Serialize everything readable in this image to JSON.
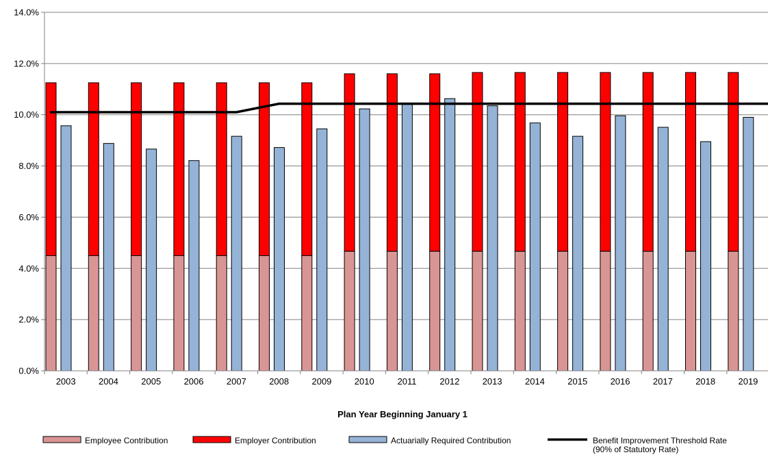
{
  "chart_data": {
    "type": "bar",
    "title": "",
    "xlabel": "Plan Year Beginning January 1",
    "ylabel": "",
    "ylim": [
      0,
      14
    ],
    "y_tick_values": [
      0,
      2,
      4,
      6,
      8,
      10,
      12,
      14
    ],
    "y_tick_labels": [
      "0.0%",
      "2.0%",
      "4.0%",
      "6.0%",
      "8.0%",
      "10.0%",
      "12.0%",
      "14.0%"
    ],
    "grid": true,
    "legend_position": "bottom",
    "categories": [
      "2003",
      "2004",
      "2005",
      "2006",
      "2007",
      "2008",
      "2009",
      "2010",
      "2011",
      "2012",
      "2013",
      "2014",
      "2015",
      "2016",
      "2017",
      "2018",
      "2019"
    ],
    "series": [
      {
        "name": "Employee Contribution",
        "kind": "stacked-bar",
        "color": "#d99594",
        "values": [
          4.5,
          4.5,
          4.5,
          4.5,
          4.5,
          4.5,
          4.5,
          4.67,
          4.67,
          4.67,
          4.67,
          4.67,
          4.67,
          4.67,
          4.67,
          4.67,
          4.67
        ]
      },
      {
        "name": "Employer Contribution",
        "kind": "stacked-bar",
        "color": "#ff0000",
        "values": [
          6.75,
          6.75,
          6.75,
          6.75,
          6.75,
          6.75,
          6.75,
          6.93,
          6.93,
          6.93,
          6.98,
          6.98,
          6.98,
          6.98,
          6.98,
          6.98,
          6.98
        ]
      },
      {
        "name": "Actuarially Required Contribution",
        "kind": "bar",
        "color": "#95b3d7",
        "values": [
          9.57,
          8.88,
          8.66,
          8.21,
          9.16,
          8.72,
          9.45,
          10.23,
          10.42,
          10.63,
          10.35,
          9.68,
          9.16,
          9.96,
          9.51,
          8.95,
          9.9
        ]
      },
      {
        "name": "Benefit Improvement Threshold Rate",
        "name_line2": "(90% of Statutory Rate)",
        "kind": "line",
        "color": "#000000",
        "values": [
          10.1,
          10.1,
          10.1,
          10.1,
          10.1,
          10.43,
          10.43,
          10.43,
          10.43,
          10.43,
          10.43,
          10.43,
          10.43,
          10.43,
          10.43,
          10.43,
          10.43
        ]
      }
    ]
  }
}
